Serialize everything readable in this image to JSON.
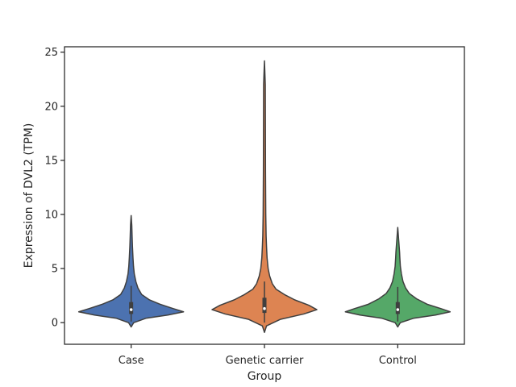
{
  "chart_data": {
    "type": "violin",
    "title": "",
    "xlabel": "Group",
    "ylabel": "Expression of DVL2 (TPM)",
    "ylim": [
      -2,
      25.5
    ],
    "yticks": [
      0,
      5,
      10,
      15,
      20,
      25
    ],
    "ytick_labels": [
      "0",
      "5",
      "10",
      "15",
      "20",
      "25"
    ],
    "grid": false,
    "legend": "none",
    "categories": [
      "Case",
      "Genetic carrier",
      "Control"
    ],
    "series": [
      {
        "color": "#4c72b0",
        "min": -0.4,
        "max": 9.9,
        "q1": 0.8,
        "median": 1.2,
        "q3": 1.9,
        "whisker_low": 0.1,
        "whisker_high": 3.4,
        "density": [
          [
            -0.4,
            0.0
          ],
          [
            0.0,
            0.05
          ],
          [
            0.4,
            0.28
          ],
          [
            0.7,
            0.7
          ],
          [
            1.0,
            1.0
          ],
          [
            1.3,
            0.8
          ],
          [
            1.7,
            0.55
          ],
          [
            2.1,
            0.35
          ],
          [
            2.6,
            0.2
          ],
          [
            3.2,
            0.13
          ],
          [
            3.8,
            0.09
          ],
          [
            4.5,
            0.06
          ],
          [
            5.2,
            0.045
          ],
          [
            6.0,
            0.035
          ],
          [
            7.0,
            0.025
          ],
          [
            8.0,
            0.018
          ],
          [
            9.0,
            0.012
          ],
          [
            9.9,
            0.0
          ]
        ]
      },
      {
        "color": "#dd8452",
        "min": -0.9,
        "max": 24.2,
        "q1": 0.9,
        "median": 1.3,
        "q3": 2.3,
        "whisker_low": 0.0,
        "whisker_high": 3.8,
        "density": [
          [
            -0.9,
            0.0
          ],
          [
            -0.3,
            0.04
          ],
          [
            0.3,
            0.3
          ],
          [
            0.8,
            0.75
          ],
          [
            1.2,
            1.0
          ],
          [
            1.6,
            0.85
          ],
          [
            2.1,
            0.58
          ],
          [
            2.6,
            0.38
          ],
          [
            3.1,
            0.22
          ],
          [
            3.6,
            0.15
          ],
          [
            4.3,
            0.1
          ],
          [
            5.0,
            0.07
          ],
          [
            6.0,
            0.05
          ],
          [
            7.0,
            0.04
          ],
          [
            8.0,
            0.032
          ],
          [
            10.0,
            0.025
          ],
          [
            14.0,
            0.02
          ],
          [
            18.0,
            0.018
          ],
          [
            22.0,
            0.016
          ],
          [
            24.2,
            0.0
          ]
        ]
      },
      {
        "color": "#55a868",
        "min": -0.4,
        "max": 8.8,
        "q1": 0.8,
        "median": 1.2,
        "q3": 1.9,
        "whisker_low": 0.1,
        "whisker_high": 3.3,
        "density": [
          [
            -0.4,
            0.0
          ],
          [
            0.0,
            0.05
          ],
          [
            0.4,
            0.3
          ],
          [
            0.7,
            0.72
          ],
          [
            1.0,
            1.0
          ],
          [
            1.3,
            0.82
          ],
          [
            1.7,
            0.56
          ],
          [
            2.2,
            0.36
          ],
          [
            2.7,
            0.22
          ],
          [
            3.2,
            0.15
          ],
          [
            3.8,
            0.1
          ],
          [
            4.5,
            0.07
          ],
          [
            5.2,
            0.05
          ],
          [
            6.0,
            0.04
          ],
          [
            6.5,
            0.035
          ],
          [
            7.5,
            0.02
          ],
          [
            8.8,
            0.0
          ]
        ]
      }
    ]
  }
}
